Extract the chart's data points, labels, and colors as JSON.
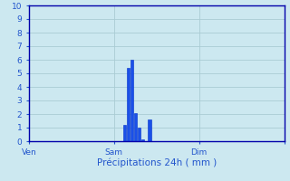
{
  "xlabel": "Précipitations 24h ( mm )",
  "background_color": "#cce8f0",
  "bar_color": "#1a50e8",
  "bar_edge_color": "#0030cc",
  "grid_color": "#aaccd4",
  "axis_color": "#0000aa",
  "text_color": "#2255cc",
  "ylim": [
    0,
    10
  ],
  "yticks": [
    0,
    1,
    2,
    3,
    4,
    5,
    6,
    7,
    8,
    9,
    10
  ],
  "xlim": [
    0,
    144
  ],
  "xtick_positions": [
    0,
    48,
    96,
    144
  ],
  "xtick_labels": [
    "Ven",
    "Sam",
    "Dim",
    ""
  ],
  "bar_positions": [
    54,
    56,
    58,
    60,
    62,
    64,
    66,
    68,
    70,
    72
  ],
  "bar_heights": [
    1.2,
    5.4,
    6.0,
    2.1,
    1.0,
    0.15,
    0.0,
    1.6,
    0.0,
    0.0
  ],
  "bar_width": 1.6,
  "figwidth": 3.2,
  "figheight": 2.0,
  "dpi": 100
}
